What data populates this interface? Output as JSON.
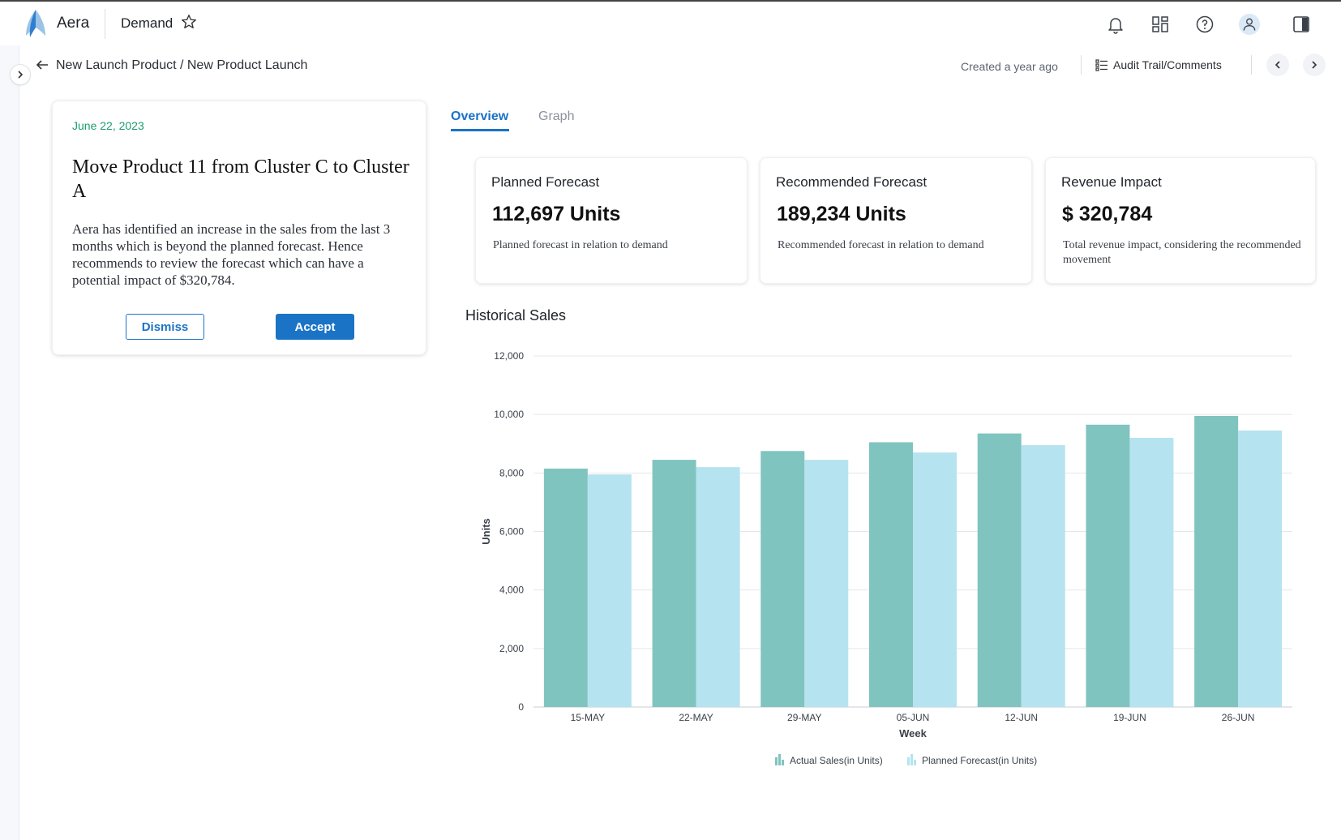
{
  "app": {
    "brand": "Aera",
    "title": "Demand"
  },
  "breadcrumb": "New Launch Product / New Product Launch",
  "header": {
    "created": "Created a year ago",
    "audit_label": "Audit Trail/Comments"
  },
  "recommendation": {
    "date": "June 22, 2023",
    "title": "Move Product 11 from Cluster C to Cluster A",
    "body": "Aera has identified an increase in the sales from the last 3 months which is beyond the planned forecast. Hence recommends to review the forecast which can have a potential impact of $320,784.",
    "dismiss_label": "Dismiss",
    "accept_label": "Accept"
  },
  "tabs": [
    {
      "label": "Overview",
      "active": true
    },
    {
      "label": "Graph",
      "active": false
    }
  ],
  "kpis": [
    {
      "label": "Planned Forecast",
      "value": "112,697 Units",
      "desc": "Planned forecast in relation to demand"
    },
    {
      "label": "Recommended Forecast",
      "value": "189,234 Units",
      "desc": "Recommended forecast in relation to demand"
    },
    {
      "label": "Revenue Impact",
      "value": "$ 320,784",
      "desc": "Total revenue impact, considering the recommended movement"
    }
  ],
  "chart_data": {
    "type": "bar",
    "title": "Historical Sales",
    "xlabel": "Week",
    "ylabel": "Units",
    "ylim": [
      0,
      12000
    ],
    "yticks": [
      0,
      2000,
      4000,
      6000,
      8000,
      10000,
      12000
    ],
    "ytick_labels": [
      "0",
      "2,000",
      "4,000",
      "6,000",
      "8,000",
      "10,000",
      "12,000"
    ],
    "categories": [
      "15-MAY",
      "22-MAY",
      "29-MAY",
      "05-JUN",
      "12-JUN",
      "19-JUN",
      "26-JUN"
    ],
    "series": [
      {
        "name": "Actual Sales(in Units)",
        "color": "#80c4bf",
        "values": [
          8150,
          8450,
          8750,
          9050,
          9350,
          9650,
          9950
        ]
      },
      {
        "name": "Planned Forecast(in Units)",
        "color": "#b5e3f0",
        "values": [
          7950,
          8200,
          8450,
          8700,
          8950,
          9200,
          9450
        ]
      }
    ],
    "grid": true,
    "legend": "bottom"
  },
  "icons": {
    "bell": "bell-icon",
    "apps": "apps-grid-icon",
    "help": "help-icon",
    "user": "user-icon",
    "panel": "panel-toggle-icon"
  }
}
